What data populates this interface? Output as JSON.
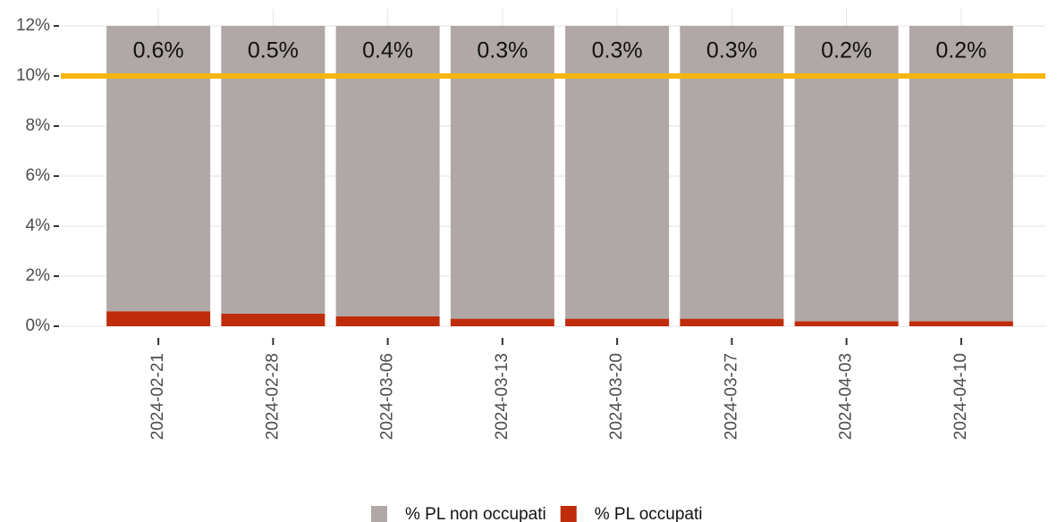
{
  "chart_data": {
    "type": "stacked_bar",
    "categories": [
      "2024-02-21",
      "2024-02-28",
      "2024-03-06",
      "2024-03-13",
      "2024-03-20",
      "2024-03-27",
      "2024-04-03",
      "2024-04-10"
    ],
    "series": [
      {
        "name": "% PL occupati",
        "color": "#bf2c0c",
        "values": [
          0.6,
          0.5,
          0.4,
          0.3,
          0.3,
          0.3,
          0.2,
          0.2
        ],
        "value_labels": [
          "0.6%",
          "0.5%",
          "0.4%",
          "0.3%",
          "0.3%",
          "0.3%",
          "0.2%",
          "0.2%"
        ]
      },
      {
        "name": "% PL non occupati",
        "color": "#b0a8a6",
        "values": [
          11.4,
          11.5,
          11.6,
          11.7,
          11.7,
          11.7,
          11.8,
          11.8
        ]
      }
    ],
    "ylim": [
      0,
      12
    ],
    "yticks": [
      {
        "value": 0,
        "label": "0%"
      },
      {
        "value": 2,
        "label": "2%"
      },
      {
        "value": 4,
        "label": "4%"
      },
      {
        "value": 6,
        "label": "6%"
      },
      {
        "value": 8,
        "label": "8%"
      },
      {
        "value": 10,
        "label": "10%"
      },
      {
        "value": 12,
        "label": "12%"
      }
    ],
    "reference_line": {
      "value": 10,
      "color": "#f5b50a"
    },
    "grid": true
  }
}
